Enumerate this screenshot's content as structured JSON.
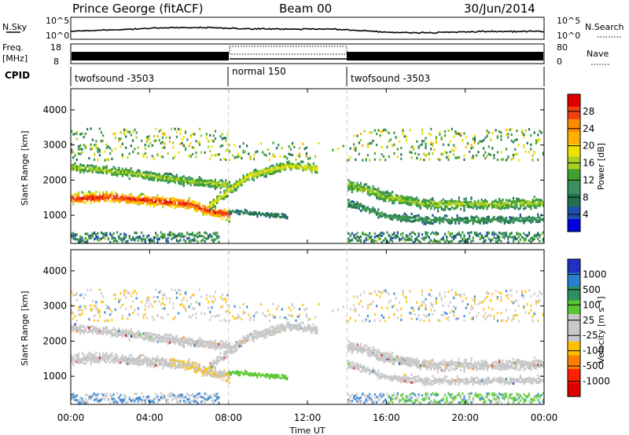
{
  "header": {
    "station": "Prince George (fitACF)",
    "beam": "Beam 00",
    "date": "30/Jun/2014"
  },
  "noise_panel": {
    "left_label": "N.Sky",
    "right_label": "N.Search",
    "left_ticks": [
      "10^5",
      "10^0"
    ],
    "right_ticks": [
      "10^5",
      "10^0"
    ]
  },
  "freq_panel": {
    "left_label_1": "Freq.",
    "left_label_2": "[MHz]",
    "right_label": "Nave",
    "left_ticks": [
      "18",
      "8"
    ],
    "right_ticks": [
      "80",
      "0"
    ]
  },
  "cpid": {
    "label": "CPID",
    "segments": [
      {
        "name": "twofsound -3503",
        "start_hr": 0,
        "end_hr": 8
      },
      {
        "name": "normal 150",
        "start_hr": 8,
        "end_hr": 14
      },
      {
        "name": "twofsound -3503",
        "start_hr": 14,
        "end_hr": 24
      }
    ]
  },
  "colorbars": {
    "power": {
      "label": "Power [dB]",
      "ticks": [
        "28",
        "24",
        "20",
        "16",
        "12",
        "8",
        "4"
      ],
      "colors": [
        "#e00000",
        "#f04010",
        "#ff8a00",
        "#ffb000",
        "#f0e000",
        "#a8d020",
        "#40a030",
        "#3a9060",
        "#207050",
        "#1f4fa8",
        "#0000e0"
      ]
    },
    "velocity": {
      "label": "Velocity [m s⁻¹]",
      "ticks": [
        "1000",
        "500",
        "100",
        "25",
        "-25",
        "-100",
        "-500",
        "-1000"
      ],
      "colors": [
        "#2030c0",
        "#2a7fd0",
        "#2f9060",
        "#58c830",
        "#c8c8c8",
        "#c8c8c8",
        "#ffc000",
        "#ff8000",
        "#ff2000",
        "#e00000"
      ]
    }
  },
  "chart_data": [
    {
      "type": "heatmap",
      "name": "power",
      "ylabel": "Slant Range [km]",
      "ylim": [
        200,
        4600
      ],
      "yticks": [
        "4000",
        "3000",
        "2000",
        "1000"
      ],
      "xlim": [
        0,
        24
      ],
      "xticks": [
        "00:00",
        "04:00",
        "08:00",
        "12:00",
        "16:00",
        "20:00",
        "00:00"
      ],
      "xlabel": "Time UT",
      "scatter_bands": [
        {
          "t": [
            0,
            2,
            4,
            6,
            7,
            8
          ],
          "range": [
            1500,
            1550,
            1450,
            1350,
            1150,
            1050
          ],
          "width": 350,
          "power": 25
        },
        {
          "t": [
            0,
            2,
            4,
            6,
            8
          ],
          "range": [
            2400,
            2300,
            2150,
            2000,
            1900
          ],
          "width": 300,
          "power": 14
        },
        {
          "t": [
            7,
            8,
            9,
            10,
            11,
            12,
            13
          ],
          "range": [
            1300,
            1750,
            2150,
            2300,
            2450,
            2400,
            2300
          ],
          "width": 300,
          "power": 16
        },
        {
          "t": [
            8,
            9,
            10,
            11
          ],
          "range": [
            1150,
            1100,
            1050,
            1000
          ],
          "width": 150,
          "power": 8
        },
        {
          "t": [
            14,
            15,
            16,
            18,
            20,
            22,
            24
          ],
          "range": [
            1900,
            1750,
            1550,
            1350,
            1350,
            1350,
            1400
          ],
          "width": 350,
          "power": 14
        },
        {
          "t": [
            14,
            15,
            16,
            18,
            20,
            22,
            24
          ],
          "range": [
            1400,
            1200,
            1000,
            900,
            900,
            900,
            950
          ],
          "width": 250,
          "power": 10
        }
      ]
    },
    {
      "type": "heatmap",
      "name": "velocity",
      "ylabel": "Slant Range [km]",
      "ylim": [
        200,
        4600
      ],
      "yticks": [
        "4000",
        "3000",
        "2000",
        "1000"
      ],
      "xlim": [
        0,
        24
      ],
      "xticks": [
        "00:00",
        "04:00",
        "08:00",
        "12:00",
        "16:00",
        "20:00",
        "00:00"
      ],
      "xlabel": "Time UT"
    }
  ]
}
